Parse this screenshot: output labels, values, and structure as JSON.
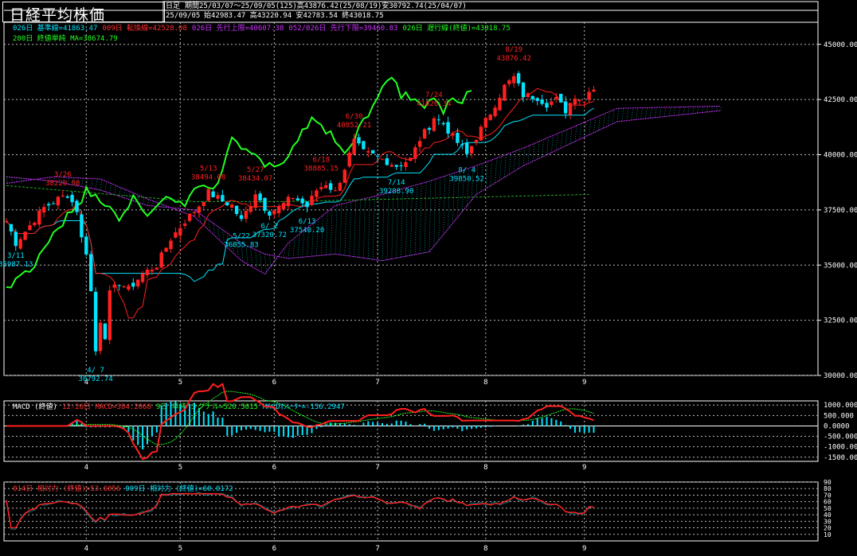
{
  "header": {
    "title": "日経平均株価",
    "timeframe": "日足",
    "period": "期間25/03/07～25/09/05(125)高43876.42(25/08/19)安30792.74(25/04/07)",
    "last_date": "25/09/05",
    "ohlc": "始42983.47 高43220.94 安42783.54 終43018.75"
  },
  "legend_main": [
    {
      "text": "026日 基準線=41863.47",
      "color": "#00e5ff"
    },
    {
      "text": "009日 転換線=42528.08",
      "color": "#ff3030"
    },
    {
      "text": "026日 先行上限=40607.38",
      "color": "#cc33ff"
    },
    {
      "text": "052/026日 先行下限=39460.83",
      "color": "#cc33ff"
    },
    {
      "text": "026日 遅行線(終値)=43018.75",
      "color": "#22ff22"
    },
    {
      "text": "200日 終値単純 MA=38674.79",
      "color": "#22ff22"
    }
  ],
  "legend_macd": [
    {
      "text": "MACD (終値)",
      "color": "#ffffff"
    },
    {
      "text": "12-26日 MACD=384.2068",
      "color": "#ff3030"
    },
    {
      "text": "9日 単純 シグナル=520.5015",
      "color": "#22ff22"
    },
    {
      "text": "MACDｵｼﾚｰﾀｰ=-136.2947",
      "color": "#00e5ff"
    }
  ],
  "legend_rsi": [
    {
      "text": "014日 相対力 (終値)=53.6056",
      "color": "#ff3030"
    },
    {
      "text": "009日 相対力 (終値)=60.0172",
      "color": "#00e5ff"
    }
  ],
  "colors": {
    "up": "#ff2020",
    "down": "#00e5ff",
    "cloud": "#cc33ff",
    "lagging": "#22ff22",
    "grid": "#bbbbbb"
  },
  "chart_data": [
    {
      "type": "candlestick",
      "x_ticks": [
        "4",
        "5",
        "6",
        "7",
        "8",
        "9"
      ],
      "ylim": [
        30000,
        46000
      ],
      "y_ticks": [
        "30000.00",
        "32500.00",
        "35000.00",
        "37500.00",
        "40000.00",
        "42500.00",
        "45000.00"
      ],
      "annotations": [
        {
          "text": "3/11",
          "sub": "35987.13",
          "day": 2,
          "price": 35987
        },
        {
          "text": "4/ 7",
          "sub": "30792.74",
          "day": 19,
          "price": 30793
        },
        {
          "text": "5/13",
          "sub": "38494.08",
          "day": 43,
          "price": 38494
        },
        {
          "text": "5/22",
          "sub": "36855.83",
          "day": 50,
          "price": 36856
        },
        {
          "text": "5/27",
          "sub": "38434.07",
          "day": 53,
          "price": 38434
        },
        {
          "text": "6/ 2",
          "sub": "37320.72",
          "day": 56,
          "price": 37321
        },
        {
          "text": "6/13",
          "sub": "37540.20",
          "day": 64,
          "price": 37540
        },
        {
          "text": "6/18",
          "sub": "38885.15",
          "day": 67,
          "price": 38885
        },
        {
          "text": "6/30",
          "sub": "40852.21",
          "day": 74,
          "price": 40852
        },
        {
          "text": "7/14",
          "sub": "39288.90",
          "day": 83,
          "price": 39289
        },
        {
          "text": "7/24",
          "sub": "41826.34",
          "day": 91,
          "price": 41826
        },
        {
          "text": "8/ 4",
          "sub": "39850.52",
          "day": 98,
          "price": 39851
        },
        {
          "text": "8/19",
          "sub": "43876.42",
          "day": 108,
          "price": 43876
        },
        {
          "text": "3/26",
          "sub": "38220.98",
          "day": 12,
          "price": 38221
        }
      ]
    },
    {
      "type": "line",
      "name": "MACD",
      "ylim": [
        -1700,
        1200
      ],
      "y_ticks": [
        "1000.000",
        "500.000",
        "0.0000",
        "-500.000",
        "-1000.000",
        "-1500.000"
      ],
      "x_ticks": [
        "4",
        "5",
        "6",
        "7",
        "8",
        "9"
      ]
    },
    {
      "type": "line",
      "name": "RSI",
      "ylim": [
        0,
        90
      ],
      "y_ticks": [
        "90",
        "80",
        "70",
        "60",
        "50",
        "40",
        "30",
        "20",
        "10"
      ],
      "x_ticks": [
        "4",
        "5",
        "6",
        "7",
        "8",
        "9"
      ]
    }
  ]
}
